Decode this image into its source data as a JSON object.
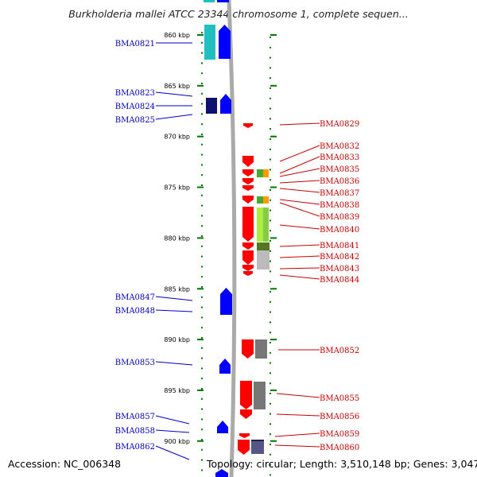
{
  "header": {
    "title": "Burkholderia mallei ATCC 23344 chromosome 1, complete sequen..."
  },
  "footer": {
    "accession": "Accession: NC_006348",
    "summary": "Topology: circular; Length: 3,510,148 bp; Genes: 3,047"
  },
  "colors": {
    "left_label": "#0000c8",
    "right_label": "#c80000",
    "backbone": "#aaaaaa",
    "tick": "#007700",
    "forward_gene": "#0000ff",
    "reverse_gene": "#ff0000",
    "cyan_gene": "#20c0c0",
    "navy_gene": "#101070"
  },
  "axis": {
    "unit": "kbp",
    "ticks": [
      {
        "value": 860,
        "label": "860 kbp"
      },
      {
        "value": 865,
        "label": "865 kbp"
      },
      {
        "value": 870,
        "label": "870 kbp"
      },
      {
        "value": 875,
        "label": "875 kbp"
      },
      {
        "value": 880,
        "label": "880 kbp"
      },
      {
        "value": 885,
        "label": "885 kbp"
      },
      {
        "value": 890,
        "label": "890 kbp"
      },
      {
        "value": 895,
        "label": "895 kbp"
      },
      {
        "value": 900,
        "label": "900 kbp"
      }
    ]
  },
  "labels": {
    "left": [
      "BMA0821",
      "BMA0823",
      "BMA0824",
      "BMA0825",
      "BMA0847",
      "BMA0848",
      "BMA0853",
      "BMA0857",
      "BMA0858",
      "BMA0862"
    ],
    "right": [
      "BMA0829",
      "BMA0832",
      "BMA0833",
      "BMA0835",
      "BMA0836",
      "BMA0837",
      "BMA0838",
      "BMA0839",
      "BMA0840",
      "BMA0841",
      "BMA0842",
      "BMA0843",
      "BMA0844",
      "BMA0852",
      "BMA0855",
      "BMA0856",
      "BMA0859",
      "BMA0860"
    ]
  }
}
